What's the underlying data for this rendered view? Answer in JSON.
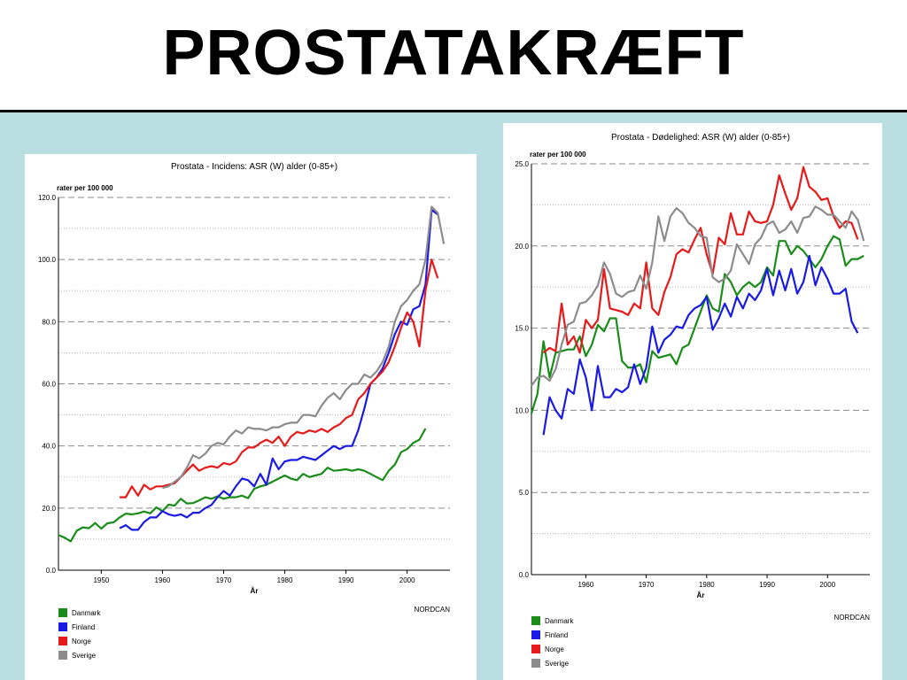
{
  "slide": {
    "title": "PROSTATAKRÆFT"
  },
  "chart_data": [
    {
      "type": "line",
      "title": "Prostata - Incidens: ASR (W) alder (0-85+)",
      "ylabel": "rater per 100 000",
      "xlabel": "År",
      "source": "NORDCAN",
      "xlim": [
        1943,
        2007
      ],
      "ylim": [
        0,
        120
      ],
      "xticks": [
        "1950",
        "1960",
        "1970",
        "1980",
        "1990",
        "2000"
      ],
      "yticks": [
        "0.0",
        "20.0",
        "40.0",
        "60.0",
        "80.0",
        "100.0",
        "120.0"
      ],
      "grid": "horizontal-dashed",
      "legend_position": "bottom-left",
      "series": [
        {
          "name": "Danmark",
          "color": "#1a8c1a",
          "x": [
            1943,
            1944,
            1945,
            1946,
            1947,
            1948,
            1949,
            1950,
            1951,
            1952,
            1953,
            1954,
            1955,
            1956,
            1957,
            1958,
            1959,
            1960,
            1961,
            1962,
            1963,
            1964,
            1965,
            1966,
            1967,
            1968,
            1969,
            1970,
            1971,
            1972,
            1973,
            1974,
            1975,
            1976,
            1977,
            1978,
            1979,
            1980,
            1981,
            1982,
            1983,
            1984,
            1985,
            1986,
            1987,
            1988,
            1989,
            1990,
            1991,
            1992,
            1993,
            1994,
            1995,
            1996,
            1997,
            1998,
            1999,
            2000,
            2001,
            2002,
            2003
          ],
          "y": [
            11.3,
            10.5,
            9.3,
            12.7,
            13.8,
            13.5,
            15.2,
            13.4,
            15.1,
            15.4,
            17,
            18.2,
            18,
            18.3,
            18.9,
            18.3,
            20.2,
            19,
            21.1,
            20.8,
            23,
            21.5,
            21.6,
            22.5,
            23.5,
            23,
            23.8,
            23,
            23.5,
            23.5,
            24,
            23.2,
            26.2,
            27,
            27.5,
            28.5,
            29.5,
            30.5,
            29.5,
            29,
            31,
            30,
            30.5,
            31,
            33,
            32,
            32.2,
            32.5,
            32,
            32.5,
            32,
            31,
            30,
            29,
            32,
            34,
            38,
            39,
            41,
            42,
            45.6
          ]
        },
        {
          "name": "Finland",
          "color": "#1a1ae6",
          "x": [
            1953,
            1954,
            1955,
            1956,
            1957,
            1958,
            1959,
            1960,
            1961,
            1962,
            1963,
            1964,
            1965,
            1966,
            1967,
            1968,
            1969,
            1970,
            1971,
            1972,
            1973,
            1974,
            1975,
            1976,
            1977,
            1978,
            1979,
            1980,
            1981,
            1982,
            1983,
            1984,
            1985,
            1986,
            1987,
            1988,
            1989,
            1990,
            1991,
            1992,
            1993,
            1994,
            1995,
            1996,
            1997,
            1998,
            1999,
            2000,
            2001,
            2002,
            2003,
            2004,
            2005
          ],
          "y": [
            13.5,
            14.5,
            13,
            13,
            15.5,
            17,
            17,
            19,
            18,
            17.5,
            18,
            17,
            18.5,
            18.5,
            20,
            21,
            23.5,
            25.5,
            24,
            27,
            29.5,
            29,
            27,
            31,
            27.5,
            36,
            32.5,
            35,
            35.5,
            35.5,
            36.5,
            36,
            35.5,
            37,
            38.5,
            40,
            39,
            40,
            40,
            45,
            52,
            60,
            62,
            65,
            70,
            76,
            80,
            79,
            84,
            85,
            92,
            116,
            114.5
          ]
        },
        {
          "name": "Norge",
          "color": "#e61a1a",
          "x": [
            1953,
            1954,
            1955,
            1956,
            1957,
            1958,
            1959,
            1960,
            1961,
            1962,
            1963,
            1964,
            1965,
            1966,
            1967,
            1968,
            1969,
            1970,
            1971,
            1972,
            1973,
            1974,
            1975,
            1976,
            1977,
            1978,
            1979,
            1980,
            1981,
            1982,
            1983,
            1984,
            1985,
            1986,
            1987,
            1988,
            1989,
            1990,
            1991,
            1992,
            1993,
            1994,
            1995,
            1996,
            1997,
            1998,
            1999,
            2000,
            2001,
            2002,
            2003,
            2004,
            2005
          ],
          "y": [
            23.5,
            23.5,
            27,
            24,
            27.5,
            26,
            27,
            27,
            27.5,
            28,
            30,
            32,
            34,
            32,
            33,
            33.5,
            33,
            34.5,
            34,
            35,
            38,
            39.5,
            39.5,
            41,
            42,
            41,
            43,
            40,
            43,
            44.5,
            44,
            45,
            44.5,
            45.5,
            44.5,
            46,
            47,
            49,
            50,
            55,
            57,
            60,
            62,
            64,
            67,
            72,
            78,
            83,
            80,
            72,
            90,
            100,
            94
          ]
        },
        {
          "name": "Sverige",
          "color": "#8c8c8c",
          "x": [
            1960,
            1961,
            1962,
            1963,
            1964,
            1965,
            1966,
            1967,
            1968,
            1969,
            1970,
            1971,
            1972,
            1973,
            1974,
            1975,
            1976,
            1977,
            1978,
            1979,
            1980,
            1981,
            1982,
            1983,
            1984,
            1985,
            1986,
            1987,
            1988,
            1989,
            1990,
            1991,
            1992,
            1993,
            1994,
            1995,
            1996,
            1997,
            1998,
            1999,
            2000,
            2001,
            2002,
            2003,
            2004,
            2005,
            2006
          ],
          "y": [
            26.5,
            27,
            28.5,
            30,
            33,
            37,
            36,
            37.5,
            40,
            41,
            40.5,
            43,
            45,
            44,
            46,
            45.5,
            45.5,
            45,
            46,
            46,
            47,
            47.5,
            47.5,
            50,
            50,
            49.5,
            53,
            55.5,
            57,
            55,
            58,
            60,
            60,
            63,
            62,
            64,
            67,
            72,
            80,
            85,
            87,
            90,
            92,
            100,
            117,
            115,
            105
          ]
        }
      ]
    },
    {
      "type": "line",
      "title": "Prostata - Dødelighed: ASR (W) alder (0-85+)",
      "ylabel": "rater per 100 000",
      "xlabel": "År",
      "source": "NORDCAN",
      "xlim": [
        1951,
        2007
      ],
      "ylim": [
        0,
        25
      ],
      "xticks": [
        "1960",
        "1970",
        "1980",
        "1990",
        "2000"
      ],
      "yticks": [
        "0.0",
        "5.0",
        "10.0",
        "15.0",
        "20.0",
        "25.0"
      ],
      "grid": "horizontal-dashed",
      "legend_position": "bottom-left",
      "series": [
        {
          "name": "Danmark",
          "color": "#1a8c1a",
          "x": [
            1951,
            1952,
            1953,
            1954,
            1955,
            1956,
            1957,
            1958,
            1959,
            1960,
            1961,
            1962,
            1963,
            1964,
            1965,
            1966,
            1967,
            1968,
            1969,
            1970,
            1971,
            1972,
            1973,
            1974,
            1975,
            1976,
            1977,
            1978,
            1979,
            1980,
            1981,
            1982,
            1983,
            1984,
            1985,
            1986,
            1987,
            1988,
            1989,
            1990,
            1991,
            1992,
            1993,
            1994,
            1995,
            1996,
            1997,
            1998,
            1999,
            2000,
            2001,
            2002,
            2003,
            2004,
            2005,
            2006
          ],
          "y": [
            9.8,
            11,
            14.2,
            12,
            13.5,
            13.6,
            13.7,
            13.7,
            14.5,
            13.3,
            14,
            15.2,
            14.8,
            15.6,
            15.6,
            13,
            12.6,
            12.6,
            12.8,
            11.7,
            13.6,
            13.2,
            13.3,
            13.4,
            12.8,
            13.8,
            14,
            15,
            16,
            17,
            16.2,
            16,
            18.3,
            17.8,
            17,
            17.5,
            17.8,
            17.5,
            17.8,
            18.7,
            18.2,
            20.3,
            20.3,
            19.5,
            20,
            19.7,
            19.2,
            18.7,
            19.2,
            20,
            20.6,
            20.4,
            18.8,
            19.2,
            19.2,
            19.4
          ]
        },
        {
          "name": "Finland",
          "color": "#1a1ae6",
          "x": [
            1953,
            1954,
            1955,
            1956,
            1957,
            1958,
            1959,
            1960,
            1961,
            1962,
            1963,
            1964,
            1965,
            1966,
            1967,
            1968,
            1969,
            1970,
            1971,
            1972,
            1973,
            1974,
            1975,
            1976,
            1977,
            1978,
            1979,
            1980,
            1981,
            1982,
            1983,
            1984,
            1985,
            1986,
            1987,
            1988,
            1989,
            1990,
            1991,
            1992,
            1993,
            1994,
            1995,
            1996,
            1997,
            1998,
            1999,
            2000,
            2001,
            2002,
            2003,
            2004,
            2005
          ],
          "y": [
            8.5,
            10.8,
            10,
            9.5,
            11.3,
            11,
            13.1,
            12,
            10,
            12.7,
            10.8,
            10.8,
            11.3,
            11.1,
            11.4,
            12.8,
            11.6,
            12.6,
            15.1,
            13.5,
            14.3,
            14.6,
            15.1,
            15,
            15.8,
            16.2,
            16.4,
            16.9,
            14.9,
            15.6,
            16.5,
            15.7,
            16.9,
            16.2,
            17.1,
            16.7,
            17.3,
            18.6,
            17,
            18.5,
            17.3,
            18.6,
            17.1,
            17.8,
            19.4,
            17.6,
            18.7,
            18,
            17.1,
            17.1,
            17.4,
            15.4,
            14.7
          ]
        },
        {
          "name": "Norge",
          "color": "#e61a1a",
          "x": [
            1953,
            1954,
            1955,
            1956,
            1957,
            1958,
            1959,
            1960,
            1961,
            1962,
            1963,
            1964,
            1965,
            1966,
            1967,
            1968,
            1969,
            1970,
            1971,
            1972,
            1973,
            1974,
            1975,
            1976,
            1977,
            1978,
            1979,
            1980,
            1981,
            1982,
            1983,
            1984,
            1985,
            1986,
            1987,
            1988,
            1989,
            1990,
            1991,
            1992,
            1993,
            1994,
            1995,
            1996,
            1997,
            1998,
            1999,
            2000,
            2001,
            2002,
            2003,
            2004,
            2005
          ],
          "y": [
            13.5,
            13.8,
            13.6,
            16.5,
            14,
            14.5,
            13.5,
            15.5,
            15,
            15.5,
            18.6,
            16.2,
            16.1,
            16,
            15.8,
            16.5,
            16.2,
            19,
            16.2,
            15.8,
            17.2,
            18.1,
            19.5,
            19.8,
            19.6,
            20.4,
            21.1,
            19.5,
            18.3,
            20.5,
            20.1,
            22,
            20.7,
            20.7,
            22.1,
            21.5,
            21.4,
            21.5,
            22.5,
            24.3,
            23.2,
            22.2,
            22.9,
            24.8,
            23.6,
            23.3,
            22.8,
            22.9,
            21.8,
            21.1,
            21.5,
            21.4,
            20.4
          ]
        },
        {
          "name": "Sverige",
          "color": "#8c8c8c",
          "x": [
            1951,
            1952,
            1953,
            1954,
            1955,
            1956,
            1957,
            1958,
            1959,
            1960,
            1961,
            1962,
            1963,
            1964,
            1965,
            1966,
            1967,
            1968,
            1969,
            1970,
            1971,
            1972,
            1973,
            1974,
            1975,
            1976,
            1977,
            1978,
            1979,
            1980,
            1981,
            1982,
            1983,
            1984,
            1985,
            1986,
            1987,
            1988,
            1989,
            1990,
            1991,
            1992,
            1993,
            1994,
            1995,
            1996,
            1997,
            1998,
            1999,
            2000,
            2001,
            2002,
            2003,
            2004,
            2005,
            2006
          ],
          "y": [
            11.5,
            12,
            12.1,
            11.8,
            12.5,
            14,
            15.2,
            15.4,
            16.5,
            16.6,
            17,
            17.6,
            19,
            18.3,
            17.1,
            16.9,
            17.2,
            17.3,
            18.2,
            17.4,
            19,
            21.8,
            20.3,
            21.8,
            22.3,
            22,
            21.4,
            21.1,
            20.6,
            20.5,
            18.1,
            17.8,
            18,
            18.5,
            20.1,
            19.5,
            18.9,
            20.1,
            20.5,
            21.3,
            21.5,
            20.8,
            21,
            21.5,
            20.8,
            21.7,
            21.8,
            22.4,
            22.2,
            21.9,
            21.9,
            21.5,
            21.1,
            22.1,
            21.6,
            20.3
          ]
        }
      ]
    }
  ]
}
